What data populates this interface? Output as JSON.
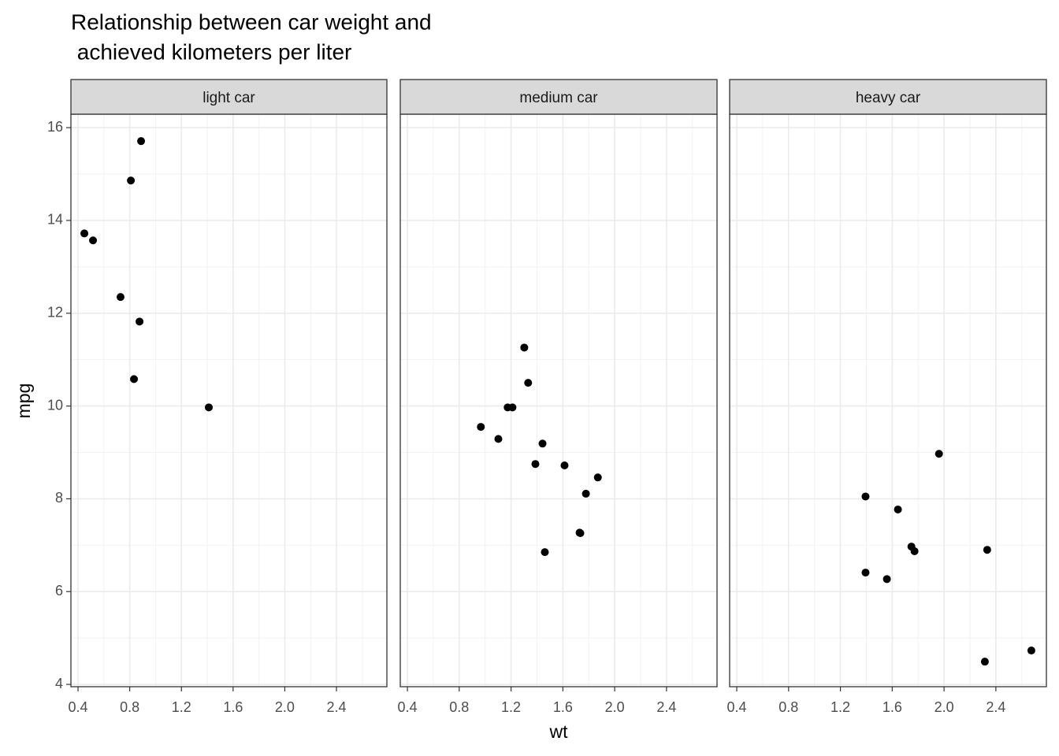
{
  "chart_data": {
    "type": "scatter",
    "title": [
      "Relationship between car weight and",
      " achieved kilometers per liter"
    ],
    "xlabel": "wt",
    "ylabel": "mpg",
    "color": "#000000",
    "grid": true,
    "xlim": [
      0.345,
      2.79
    ],
    "ylim": [
      3.95,
      16.29
    ],
    "xticks": [
      0.4,
      0.8,
      1.2,
      1.6,
      {
        "value": 2,
        "label": "2.0"
      },
      2.4
    ],
    "yticks": [
      4,
      6,
      8,
      10,
      12,
      14,
      16
    ],
    "facets": [
      {
        "name": "light car",
        "x": [
          0.449,
          0.516,
          0.888,
          0.809,
          0.729,
          0.876,
          0.833,
          1.412
        ],
        "y": [
          13.72,
          13.57,
          15.71,
          14.86,
          12.35,
          11.82,
          10.58,
          9.97
        ]
      },
      {
        "name": "medium car",
        "x": [
          1.302,
          1.332,
          1.174,
          1.211,
          0.967,
          1.102,
          1.443,
          1.388,
          1.613,
          1.87,
          1.778,
          1.729,
          1.735,
          1.461
        ],
        "y": [
          11.26,
          10.5,
          9.97,
          9.97,
          9.55,
          9.29,
          9.19,
          8.75,
          8.72,
          8.46,
          8.11,
          7.27,
          7.26,
          6.85
        ]
      },
      {
        "name": "heavy car",
        "x": [
          1.961,
          1.394,
          1.644,
          1.748,
          1.772,
          2.333,
          1.394,
          1.559,
          2.315,
          2.674
        ],
        "y": [
          8.97,
          8.05,
          7.77,
          6.97,
          6.87,
          6.9,
          6.41,
          6.27,
          4.49,
          4.73
        ]
      }
    ]
  }
}
